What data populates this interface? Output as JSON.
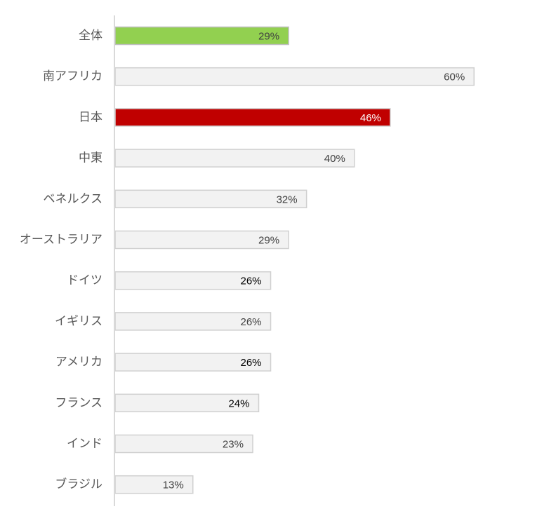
{
  "chart_data": {
    "type": "bar",
    "orientation": "horizontal",
    "categories": [
      "全体",
      "南アフリカ",
      "日本",
      "中東",
      "ベネルクス",
      "オーストラリア",
      "ドイツ",
      "イギリス",
      "アメリカ",
      "フランス",
      "インド",
      "ブラジル"
    ],
    "values": [
      29,
      60,
      46,
      40,
      32,
      29,
      26,
      26,
      26,
      24,
      23,
      13
    ],
    "data_labels": [
      "29%",
      "60%",
      "46%",
      "40%",
      "32%",
      "29%",
      "26%",
      "26%",
      "26%",
      "24%",
      "23%",
      "13%"
    ],
    "bar_colors": [
      "#92d050",
      "#f2f2f2",
      "#c00000",
      "#f2f2f2",
      "#f2f2f2",
      "#f2f2f2",
      "#f2f2f2",
      "#f2f2f2",
      "#f2f2f2",
      "#f2f2f2",
      "#f2f2f2",
      "#f2f2f2"
    ],
    "border_colors": [
      "#bfbfbf",
      "#d0d0d0",
      "#d0d0d0",
      "#d0d0d0",
      "#d0d0d0",
      "#d0d0d0",
      "#d0d0d0",
      "#d0d0d0",
      "#d0d0d0",
      "#d0d0d0",
      "#d0d0d0",
      "#d0d0d0"
    ],
    "label_colors": [
      "#404040",
      "#404040",
      "#ffffff",
      "#404040",
      "#404040",
      "#404040",
      "#000000",
      "#404040",
      "#000000",
      "#000000",
      "#404040",
      "#404040"
    ],
    "xlim": [
      0,
      60
    ],
    "axis_color": "#d9d9d9",
    "title": "",
    "xlabel": "",
    "ylabel": "",
    "grid": false,
    "legend": "none"
  }
}
